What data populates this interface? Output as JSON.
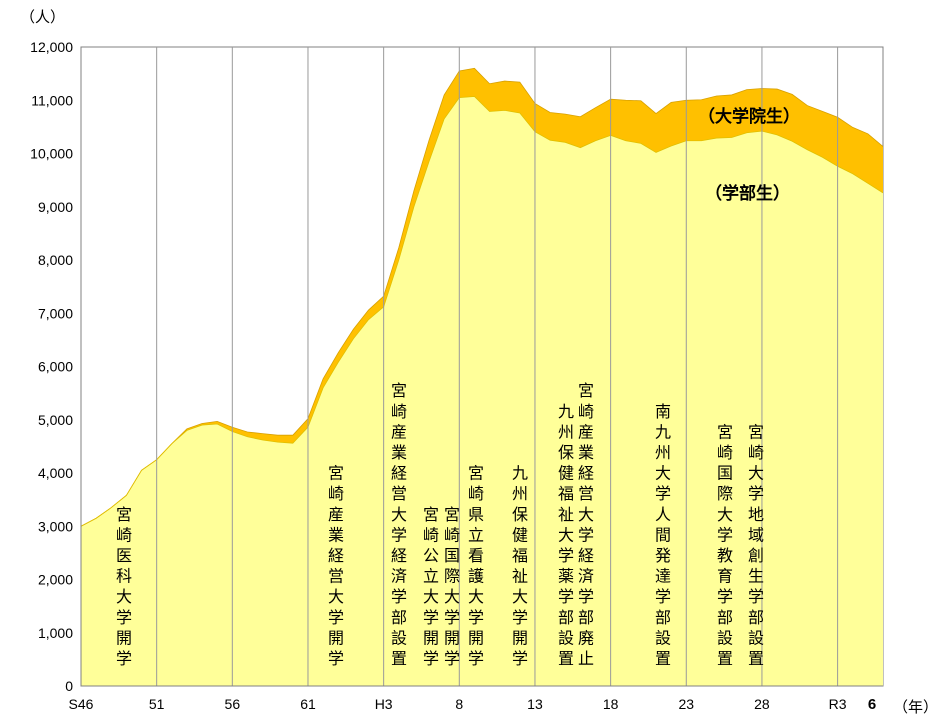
{
  "chart_data": {
    "type": "area",
    "stacked": true,
    "y_unit_label": "（人）",
    "x_unit_label": "（年）",
    "ylim": [
      0,
      12000
    ],
    "y_ticks": [
      0,
      1000,
      2000,
      3000,
      4000,
      5000,
      6000,
      7000,
      8000,
      9000,
      10000,
      11000,
      12000
    ],
    "y_tick_labels": [
      "0",
      "1,000",
      "2,000",
      "3,000",
      "4,000",
      "5,000",
      "6,000",
      "7,000",
      "8,000",
      "9,000",
      "10,000",
      "11,000",
      "12,000"
    ],
    "x_tick_labels": [
      "S46",
      "51",
      "56",
      "61",
      "H3",
      "8",
      "13",
      "18",
      "23",
      "28",
      "R3",
      "6"
    ],
    "vertical_gridlines": true,
    "horizontal_gridlines": false,
    "colors": {
      "undergrad": "#ffff99",
      "grad": "#ffc000"
    },
    "series": [
      {
        "name": "（学部生）",
        "values": [
          3000,
          3150,
          3350,
          3580,
          4050,
          4250,
          4550,
          4800,
          4900,
          4920,
          4780,
          4680,
          4620,
          4580,
          4560,
          4860,
          5600,
          6080,
          6520,
          6880,
          7120,
          8000,
          9000,
          9850,
          10650,
          11050,
          11070,
          10790,
          10810,
          10760,
          10410,
          10250,
          10210,
          10110,
          10240,
          10340,
          10240,
          10190,
          10020,
          10140,
          10240,
          10240,
          10290,
          10300,
          10390,
          10420,
          10350,
          10230,
          10070,
          9930,
          9760,
          9620,
          9440,
          9260
        ]
      },
      {
        "name": "（大学院生）",
        "values": [
          0,
          0,
          0,
          0,
          0,
          0,
          0,
          30,
          30,
          50,
          80,
          90,
          120,
          130,
          150,
          160,
          170,
          180,
          180,
          180,
          200,
          230,
          300,
          400,
          450,
          500,
          530,
          520,
          550,
          580,
          530,
          520,
          530,
          580,
          620,
          680,
          760,
          800,
          730,
          820,
          760,
          770,
          790,
          800,
          810,
          800,
          860,
          880,
          830,
          860,
          920,
          870,
          930,
          870
        ]
      }
    ],
    "annotations": [
      {
        "label": "宮崎医科大学開学",
        "lines": [
          "宮崎医科大学開学"
        ]
      },
      {
        "label": "宮崎産業経営大学開学",
        "lines": [
          "宮崎産業経営大学開学"
        ]
      },
      {
        "label": "宮崎産業経営大学経済学部設置",
        "lines": [
          "宮崎産業経営大学経済学部設置"
        ]
      },
      {
        "label": "宮崎公立大学開学",
        "lines": [
          "宮崎公立大学開学"
        ]
      },
      {
        "label": "宮崎国際大学開学",
        "lines": [
          "宮崎国際大学開学"
        ]
      },
      {
        "label": "宮崎県立看護大学開学",
        "lines": [
          "宮崎県立看護大学開学"
        ]
      },
      {
        "label": "九州保健福祉大学開学",
        "lines": [
          "九州保健福祉大学開学"
        ]
      },
      {
        "label": "九州保健福祉大学薬学部設置",
        "lines": [
          "九州保健福祉大学薬学部設置"
        ]
      },
      {
        "label": "宮崎産業経営大学経済学部廃止",
        "lines": [
          "宮崎産業経営大学経済学部廃止"
        ]
      },
      {
        "label": "南九州大学人間発達学部設置",
        "lines": [
          "南九州大学人間発達学部設置"
        ]
      },
      {
        "label": "宮崎国際大学教育学部設置",
        "lines": [
          "宮崎国際大学教育学部設置"
        ]
      },
      {
        "label": "宮崎大学地域創生学部設置",
        "lines": [
          "宮崎大学地域創生学部設置"
        ]
      }
    ]
  }
}
